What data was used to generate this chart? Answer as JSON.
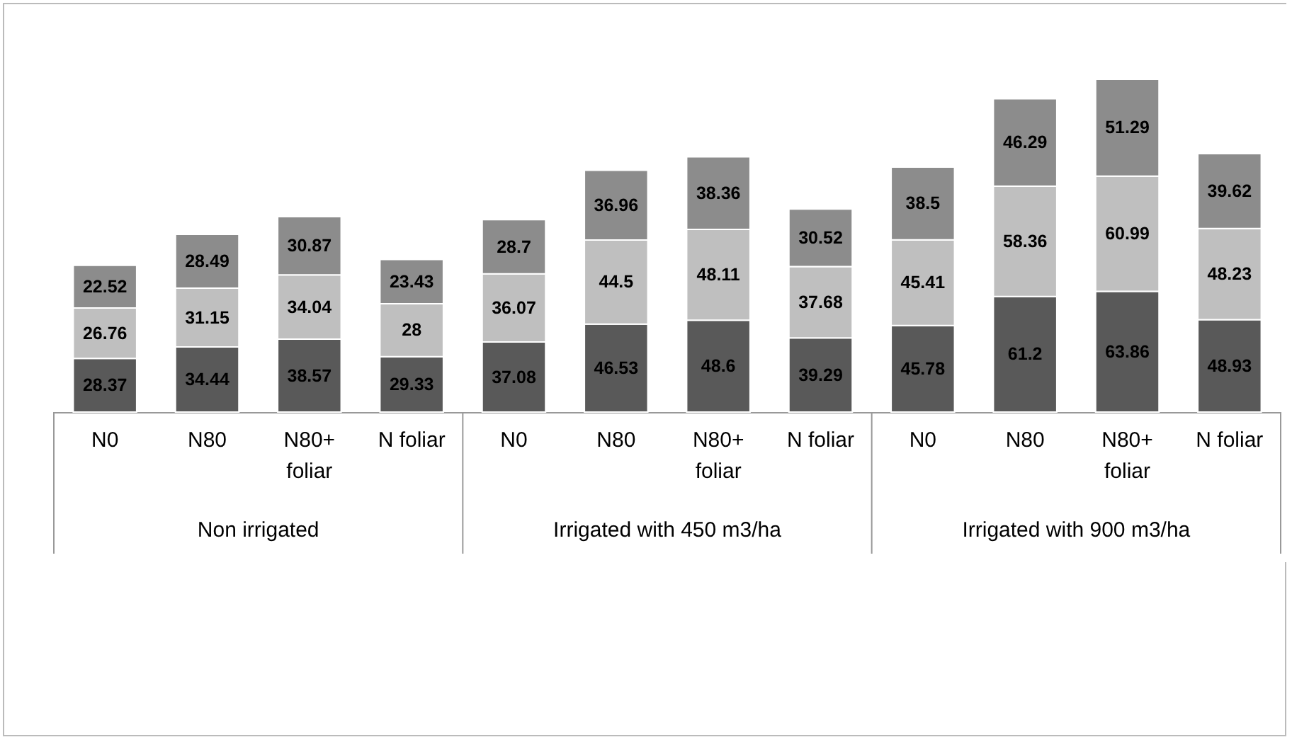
{
  "chart_data": {
    "type": "bar",
    "stacked": true,
    "data_labels": true,
    "legend": false,
    "categories": [
      "N0",
      "N80",
      "N80+ foliar",
      "N foliar",
      "N0",
      "N80",
      "N80+ foliar",
      "N foliar",
      "N0",
      "N80",
      "N80+ foliar",
      "N foliar"
    ],
    "annotations": [
      "Non irrigated",
      "Irrigated with 450 m3/ha",
      "Irrigated with 900 m3/ha"
    ],
    "series": [
      {
        "color": "#595959",
        "values": [
          28.37,
          34.44,
          38.57,
          29.33,
          37.08,
          46.53,
          48.6,
          39.29,
          45.78,
          61.2,
          63.86,
          48.93
        ]
      },
      {
        "color": "#bfbfbf",
        "values": [
          26.76,
          31.15,
          34.04,
          28,
          36.07,
          44.5,
          48.11,
          37.68,
          45.41,
          58.36,
          60.99,
          48.23
        ]
      },
      {
        "color": "#8c8c8c",
        "values": [
          22.52,
          28.49,
          30.87,
          23.43,
          28.7,
          36.96,
          38.36,
          30.52,
          38.5,
          46.29,
          51.29,
          39.62
        ]
      }
    ]
  }
}
